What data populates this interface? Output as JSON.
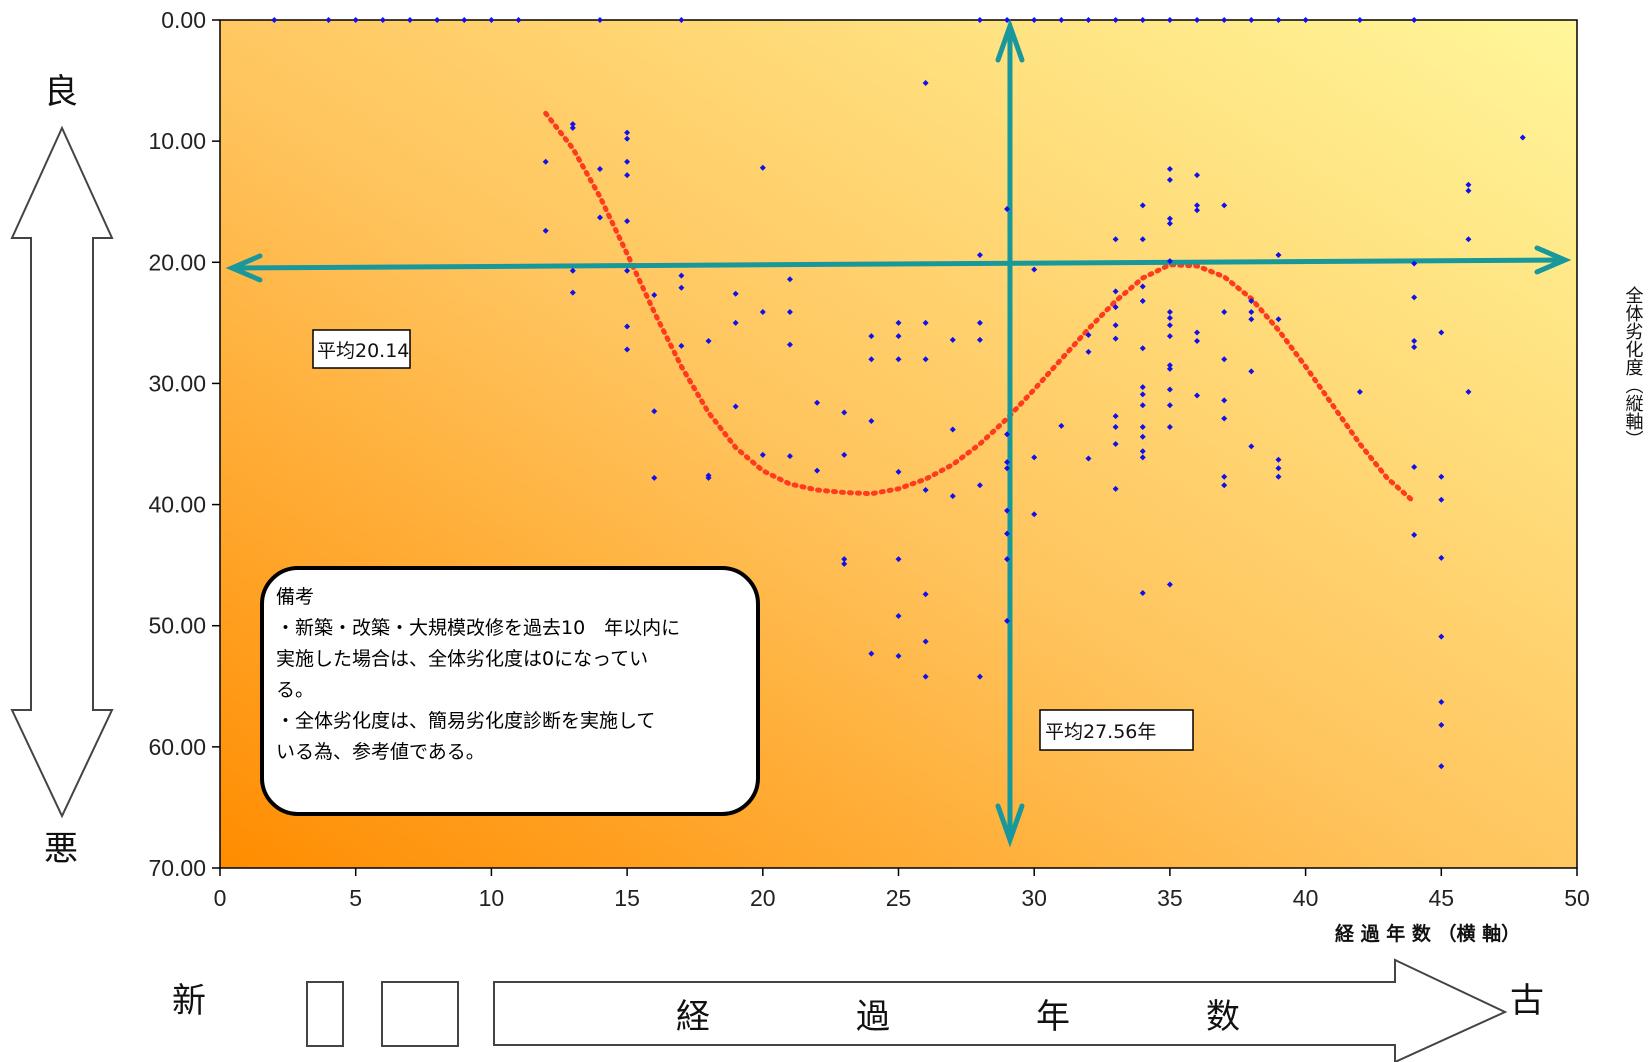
{
  "chart_data": {
    "type": "scatter",
    "x_title": "経 過 年 数 （横 軸）",
    "y_title": "全体劣化度（縦軸）",
    "xlim": [
      0,
      50
    ],
    "ylim": [
      0,
      70
    ],
    "y_inverted": true,
    "x_ticks": [
      "0",
      "5",
      "10",
      "15",
      "20",
      "25",
      "30",
      "35",
      "40",
      "45",
      "50"
    ],
    "y_ticks": [
      "0.00",
      "10.00",
      "20.00",
      "30.00",
      "40.00",
      "50.00",
      "60.00",
      "70.00"
    ],
    "background": "orange-to-yellow gradient",
    "point_color": "#1010ee",
    "trend_color": "#ff3b1f",
    "avg_color": "#18989a",
    "points": [
      [
        2,
        0
      ],
      [
        4,
        0
      ],
      [
        5,
        0
      ],
      [
        6,
        0
      ],
      [
        7,
        0
      ],
      [
        8,
        0
      ],
      [
        9,
        0
      ],
      [
        10,
        0
      ],
      [
        11,
        0
      ],
      [
        14,
        0
      ],
      [
        17,
        0
      ],
      [
        28,
        0
      ],
      [
        29,
        0
      ],
      [
        30,
        0
      ],
      [
        31,
        0
      ],
      [
        32,
        0
      ],
      [
        33,
        0
      ],
      [
        34,
        0
      ],
      [
        35,
        0
      ],
      [
        36,
        0
      ],
      [
        37,
        0
      ],
      [
        38,
        0
      ],
      [
        39,
        0
      ],
      [
        40,
        0
      ],
      [
        42,
        0
      ],
      [
        44,
        0
      ],
      [
        26,
        5.2
      ],
      [
        12,
        11.7
      ],
      [
        12,
        17.4
      ],
      [
        13,
        8.6
      ],
      [
        13,
        8.9
      ],
      [
        13,
        20.7
      ],
      [
        13,
        22.5
      ],
      [
        14,
        12.3
      ],
      [
        14,
        16.3
      ],
      [
        15,
        9.3
      ],
      [
        15,
        9.8
      ],
      [
        15,
        11.7
      ],
      [
        15,
        12.8
      ],
      [
        15,
        16.6
      ],
      [
        15,
        20.7
      ],
      [
        15,
        25.3
      ],
      [
        15,
        27.2
      ],
      [
        16,
        22.7
      ],
      [
        16,
        32.3
      ],
      [
        16,
        37.8
      ],
      [
        17,
        21.1
      ],
      [
        17,
        22.1
      ],
      [
        17,
        26.9
      ],
      [
        18,
        26.5
      ],
      [
        18,
        37.6
      ],
      [
        18,
        37.8
      ],
      [
        19,
        22.6
      ],
      [
        19,
        25.0
      ],
      [
        19,
        31.9
      ],
      [
        20,
        12.2
      ],
      [
        20,
        24.1
      ],
      [
        20,
        35.9
      ],
      [
        21,
        21.4
      ],
      [
        21,
        24.1
      ],
      [
        21,
        26.8
      ],
      [
        21,
        36.0
      ],
      [
        22,
        31.6
      ],
      [
        22,
        37.2
      ],
      [
        23,
        32.4
      ],
      [
        23,
        35.9
      ],
      [
        23,
        44.5
      ],
      [
        23,
        44.9
      ],
      [
        24,
        26.1
      ],
      [
        24,
        28.0
      ],
      [
        24,
        33.1
      ],
      [
        24,
        52.3
      ],
      [
        25,
        25.0
      ],
      [
        25,
        26.1
      ],
      [
        25,
        28.0
      ],
      [
        25,
        37.3
      ],
      [
        25,
        44.5
      ],
      [
        25,
        49.2
      ],
      [
        25,
        52.5
      ],
      [
        26,
        25.0
      ],
      [
        26,
        28.0
      ],
      [
        26,
        38.8
      ],
      [
        26,
        47.4
      ],
      [
        26,
        51.3
      ],
      [
        26,
        54.2
      ],
      [
        27,
        26.4
      ],
      [
        27,
        33.8
      ],
      [
        27,
        39.3
      ],
      [
        28,
        19.4
      ],
      [
        28,
        25.0
      ],
      [
        28,
        26.4
      ],
      [
        28,
        38.4
      ],
      [
        28,
        54.2
      ],
      [
        29,
        15.6
      ],
      [
        29,
        34.2
      ],
      [
        29,
        36.5
      ],
      [
        29,
        37.0
      ],
      [
        29,
        40.5
      ],
      [
        29,
        42.4
      ],
      [
        29,
        44.5
      ],
      [
        29,
        49.6
      ],
      [
        30,
        20.6
      ],
      [
        30,
        36.1
      ],
      [
        30,
        40.8
      ],
      [
        31,
        33.5
      ],
      [
        32,
        26.0
      ],
      [
        32,
        27.4
      ],
      [
        32,
        36.2
      ],
      [
        33,
        18.1
      ],
      [
        33,
        22.4
      ],
      [
        33,
        23.7
      ],
      [
        33,
        25.2
      ],
      [
        33,
        26.3
      ],
      [
        33,
        32.7
      ],
      [
        33,
        33.6
      ],
      [
        33,
        35.0
      ],
      [
        33,
        38.7
      ],
      [
        34,
        15.3
      ],
      [
        34,
        18.1
      ],
      [
        34,
        22.0
      ],
      [
        34,
        23.2
      ],
      [
        34,
        27.1
      ],
      [
        34,
        30.3
      ],
      [
        34,
        30.9
      ],
      [
        34,
        31.8
      ],
      [
        34,
        33.6
      ],
      [
        34,
        34.4
      ],
      [
        34,
        35.6
      ],
      [
        34,
        36.1
      ],
      [
        34,
        47.3
      ],
      [
        35,
        12.3
      ],
      [
        35,
        13.2
      ],
      [
        35,
        16.4
      ],
      [
        35,
        16.8
      ],
      [
        35,
        19.9
      ],
      [
        35,
        24.1
      ],
      [
        35,
        24.6
      ],
      [
        35,
        25.2
      ],
      [
        35,
        26.1
      ],
      [
        35,
        28.5
      ],
      [
        35,
        28.8
      ],
      [
        35,
        30.5
      ],
      [
        35,
        31.8
      ],
      [
        35,
        33.6
      ],
      [
        35,
        46.6
      ],
      [
        36,
        12.8
      ],
      [
        36,
        15.3
      ],
      [
        36,
        15.7
      ],
      [
        36,
        25.8
      ],
      [
        36,
        26.5
      ],
      [
        36,
        31.0
      ],
      [
        37,
        15.3
      ],
      [
        37,
        24.1
      ],
      [
        37,
        28.0
      ],
      [
        37,
        31.4
      ],
      [
        37,
        32.9
      ],
      [
        37,
        37.7
      ],
      [
        37,
        38.4
      ],
      [
        38,
        23.2
      ],
      [
        38,
        24.1
      ],
      [
        38,
        24.7
      ],
      [
        38,
        29.0
      ],
      [
        38,
        35.2
      ],
      [
        39,
        19.4
      ],
      [
        39,
        24.7
      ],
      [
        39,
        36.3
      ],
      [
        39,
        37.0
      ],
      [
        39,
        37.7
      ],
      [
        42,
        30.7
      ],
      [
        44,
        20.1
      ],
      [
        44,
        22.9
      ],
      [
        44,
        26.5
      ],
      [
        44,
        27.0
      ],
      [
        44,
        36.9
      ],
      [
        44,
        42.5
      ],
      [
        45,
        25.8
      ],
      [
        45,
        37.7
      ],
      [
        45,
        39.6
      ],
      [
        45,
        44.4
      ],
      [
        45,
        50.9
      ],
      [
        45,
        56.3
      ],
      [
        45,
        58.2
      ],
      [
        45,
        61.6
      ],
      [
        46,
        13.6
      ],
      [
        46,
        14.1
      ],
      [
        46,
        18.1
      ],
      [
        46,
        30.7
      ],
      [
        48,
        9.7
      ]
    ],
    "trend": [
      [
        12,
        7.7
      ],
      [
        13,
        10.6
      ],
      [
        14,
        14.6
      ],
      [
        15,
        19.3
      ],
      [
        16,
        24.1
      ],
      [
        17,
        28.6
      ],
      [
        18,
        32.4
      ],
      [
        19,
        35.3
      ],
      [
        20,
        37.2
      ],
      [
        21,
        38.3
      ],
      [
        22,
        38.8
      ],
      [
        23,
        39.0
      ],
      [
        24,
        39.1
      ],
      [
        25,
        38.7
      ],
      [
        26,
        37.9
      ],
      [
        27,
        36.7
      ],
      [
        28,
        35.0
      ],
      [
        29,
        32.9
      ],
      [
        30,
        30.5
      ],
      [
        31,
        28.0
      ],
      [
        32,
        25.5
      ],
      [
        33,
        23.2
      ],
      [
        34,
        21.3
      ],
      [
        35,
        20.2
      ],
      [
        36,
        20.3
      ],
      [
        37,
        21.2
      ],
      [
        38,
        23.0
      ],
      [
        39,
        25.6
      ],
      [
        40,
        28.6
      ],
      [
        41,
        31.8
      ],
      [
        42,
        35.0
      ],
      [
        43,
        37.8
      ],
      [
        44,
        39.8
      ]
    ],
    "avg_y_value": 20.14,
    "avg_x_value": 27.56,
    "avg_y_label": "平均20.14",
    "avg_x_label": "平均27.56年"
  },
  "side": {
    "good": "良",
    "bad": "悪",
    "new": "新",
    "old": "古",
    "arrow_text": [
      "経",
      "過",
      "年",
      "数"
    ]
  },
  "notes": {
    "title": "備考",
    "lines": [
      "・新築・改築・大規模改修を過去10　年以内に",
      "実施した場合は、全体劣化度は0になってい",
      "る。",
      "・全体劣化度は、簡易劣化度診断を実施して",
      "いる為、参考値である。"
    ]
  }
}
